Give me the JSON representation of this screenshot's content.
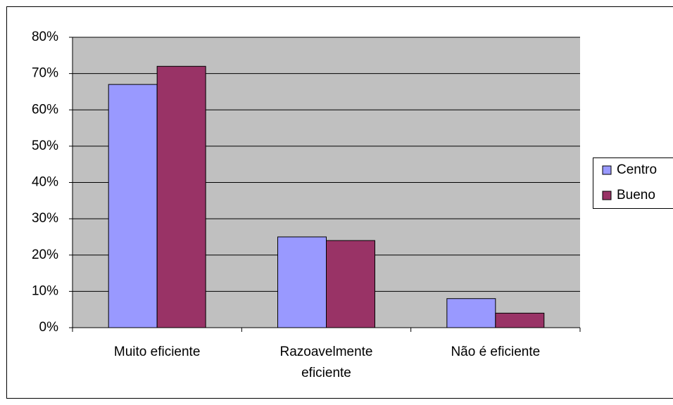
{
  "chart_data": {
    "type": "bar",
    "categories": [
      "Muito eficiente",
      "Razoavelmente eficiente",
      "Não é eficiente"
    ],
    "series": [
      {
        "name": "Centro",
        "color": "#9999ff",
        "values": [
          67,
          25,
          8
        ]
      },
      {
        "name": "Bueno",
        "color": "#993366",
        "values": [
          72,
          24,
          4
        ]
      }
    ],
    "ylim": [
      0,
      80
    ],
    "yticks": [
      {
        "value": 0,
        "label": "0%"
      },
      {
        "value": 10,
        "label": "10%"
      },
      {
        "value": 20,
        "label": "20%"
      },
      {
        "value": 30,
        "label": "30%"
      },
      {
        "value": 40,
        "label": "40%"
      },
      {
        "value": 50,
        "label": "50%"
      },
      {
        "value": 60,
        "label": "60%"
      },
      {
        "value": 70,
        "label": "70%"
      },
      {
        "value": 80,
        "label": "80%"
      }
    ],
    "grid": true,
    "legend": "right",
    "plot_background": "#c0c0c0"
  }
}
